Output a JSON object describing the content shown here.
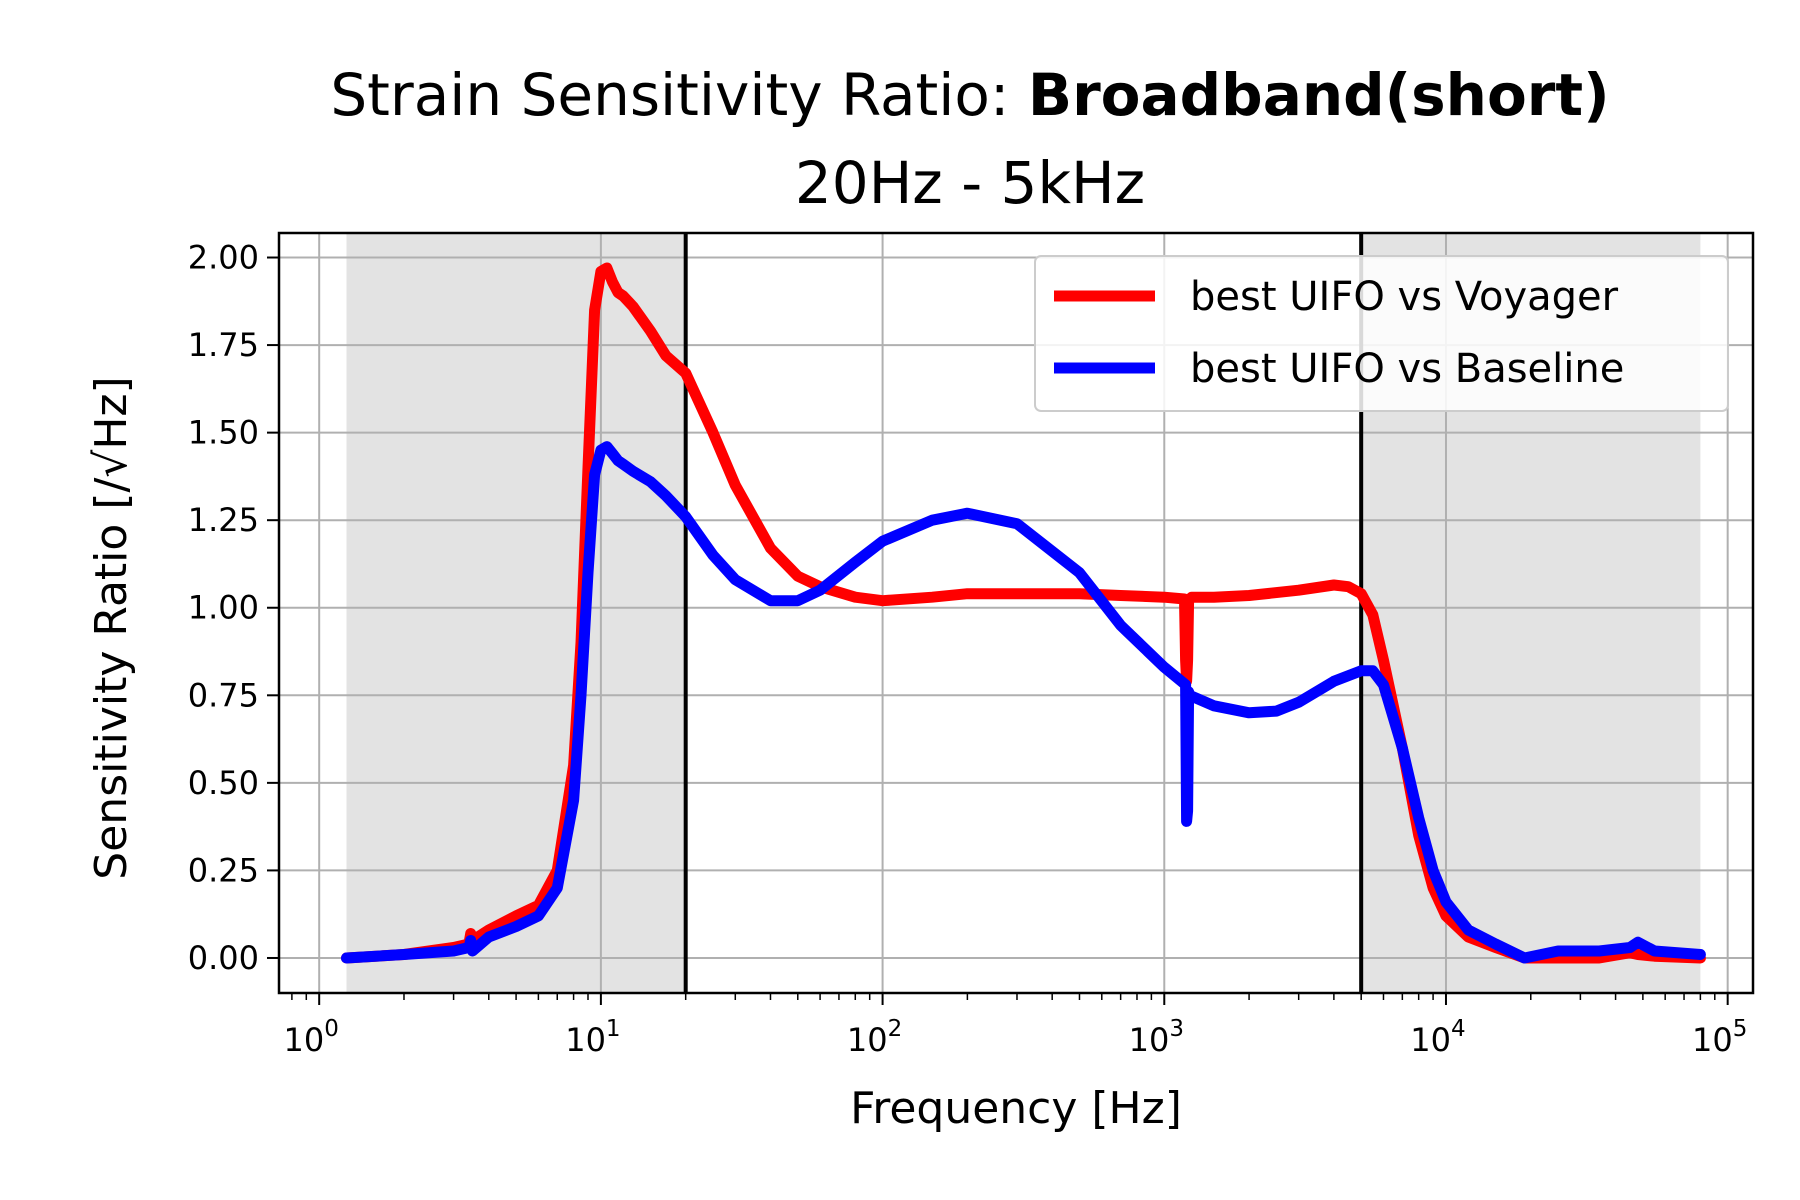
{
  "chart_data": {
    "type": "line",
    "title_prefix": "Strain Sensitivity Ratio: ",
    "title_bold": "Broadband(short)",
    "subtitle": "20Hz - 5kHz",
    "xlabel": "Frequency [Hz]",
    "ylabel": "Sensitivity Ratio [/√Hz]",
    "x_scale": "log",
    "xlim": [
      0.72,
      123000
    ],
    "ylim": [
      -0.1,
      2.07
    ],
    "grid": true,
    "legend_position": "top-right",
    "x_ticks": [
      {
        "value": 1,
        "base": "10",
        "exp": "0"
      },
      {
        "value": 10,
        "base": "10",
        "exp": "1"
      },
      {
        "value": 100,
        "base": "10",
        "exp": "2"
      },
      {
        "value": 1000,
        "base": "10",
        "exp": "3"
      },
      {
        "value": 10000,
        "base": "10",
        "exp": "4"
      },
      {
        "value": 100000,
        "base": "10",
        "exp": "5"
      }
    ],
    "y_ticks": [
      "0.00",
      "0.25",
      "0.50",
      "0.75",
      "1.00",
      "1.25",
      "1.50",
      "1.75",
      "2.00"
    ],
    "shaded_regions": [
      [
        1.25,
        20
      ],
      [
        5000,
        80000
      ]
    ],
    "vertical_lines": [
      20,
      5000
    ],
    "series": [
      {
        "name": "best UIFO vs Voyager",
        "color": "#ff0000",
        "x": [
          1.25,
          2,
          3,
          3.4,
          3.45,
          3.5,
          4,
          5,
          6,
          7,
          8,
          8.5,
          9,
          9.5,
          10,
          10.5,
          11,
          11.5,
          12,
          13,
          15,
          17,
          20,
          25,
          30,
          40,
          50,
          60,
          80,
          100,
          150,
          200,
          300,
          500,
          700,
          1000,
          1180,
          1190,
          1200,
          1210,
          1220,
          1250,
          1500,
          2000,
          3000,
          4000,
          4500,
          5000,
          5500,
          6000,
          7000,
          8000,
          9000,
          10000,
          12000,
          15000,
          19000,
          25000,
          35000,
          45000,
          48000,
          55000,
          80000
        ],
        "y": [
          0.0,
          0.01,
          0.03,
          0.04,
          0.07,
          0.05,
          0.08,
          0.12,
          0.15,
          0.25,
          0.55,
          0.9,
          1.4,
          1.85,
          1.96,
          1.97,
          1.93,
          1.9,
          1.89,
          1.86,
          1.79,
          1.72,
          1.67,
          1.5,
          1.35,
          1.17,
          1.09,
          1.06,
          1.03,
          1.02,
          1.03,
          1.04,
          1.04,
          1.04,
          1.035,
          1.03,
          1.025,
          0.85,
          0.79,
          0.85,
          1.02,
          1.03,
          1.03,
          1.035,
          1.05,
          1.065,
          1.06,
          1.04,
          0.98,
          0.85,
          0.6,
          0.35,
          0.2,
          0.12,
          0.06,
          0.03,
          0.0,
          0.0,
          0.0,
          0.015,
          0.01,
          0.005,
          0.0
        ]
      },
      {
        "name": "best UIFO vs Baseline",
        "color": "#0000ff",
        "x": [
          1.25,
          2,
          3,
          3.4,
          3.45,
          3.5,
          4,
          5,
          6,
          7,
          8,
          8.5,
          9,
          9.5,
          10,
          10.5,
          11,
          11.5,
          12,
          13,
          15,
          17,
          20,
          25,
          30,
          40,
          50,
          60,
          80,
          100,
          150,
          200,
          300,
          500,
          700,
          1000,
          1190,
          1200,
          1210,
          1220,
          1230,
          1500,
          2000,
          2500,
          3000,
          4000,
          5000,
          5500,
          6000,
          7000,
          8000,
          9000,
          10000,
          12000,
          15000,
          19000,
          25000,
          35000,
          45000,
          48000,
          55000,
          80000
        ],
        "y": [
          0.0,
          0.01,
          0.02,
          0.03,
          0.05,
          0.02,
          0.06,
          0.09,
          0.12,
          0.2,
          0.45,
          0.75,
          1.1,
          1.38,
          1.45,
          1.46,
          1.44,
          1.42,
          1.41,
          1.39,
          1.36,
          1.32,
          1.26,
          1.15,
          1.08,
          1.02,
          1.02,
          1.05,
          1.13,
          1.19,
          1.25,
          1.27,
          1.24,
          1.1,
          0.95,
          0.83,
          0.78,
          0.39,
          0.42,
          0.76,
          0.75,
          0.72,
          0.7,
          0.705,
          0.73,
          0.79,
          0.82,
          0.82,
          0.78,
          0.6,
          0.4,
          0.25,
          0.16,
          0.08,
          0.04,
          0.0,
          0.02,
          0.02,
          0.03,
          0.045,
          0.02,
          0.01
        ]
      }
    ]
  }
}
